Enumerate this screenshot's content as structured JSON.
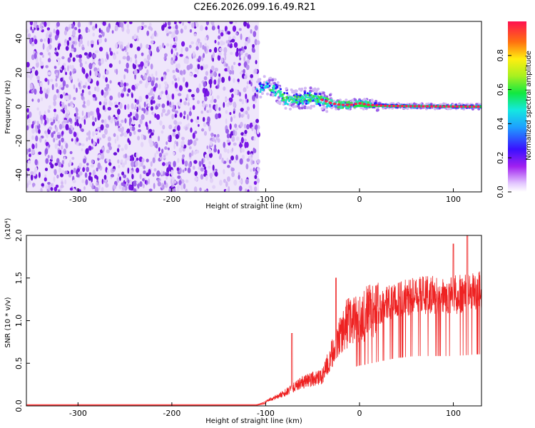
{
  "title": "C2E6.2026.099.16.49.R21",
  "colors": {
    "snr_line": "#ee2222",
    "baseline": "#ff4444",
    "noise_light": "#d9c7f3",
    "noise_dark": "#7a18e6"
  },
  "chart_data": [
    {
      "type": "heatmap",
      "name": "spectrogram",
      "xlabel": "Height of straight line (km)",
      "ylabel": "Frequency (Hz)",
      "xlim": [
        -355,
        130
      ],
      "ylim": [
        -50,
        50
      ],
      "x_ticks": [
        -300,
        -200,
        -100,
        0,
        100
      ],
      "y_ticks": [
        -40,
        -20,
        0,
        20,
        40
      ],
      "noise_region_x": [
        -355,
        -107
      ],
      "signal_start_x": -110,
      "signal_track": [
        [
          -110,
          10
        ],
        [
          -100,
          12
        ],
        [
          -90,
          10
        ],
        [
          -80,
          5
        ],
        [
          -70,
          4
        ],
        [
          -60,
          5
        ],
        [
          -50,
          5
        ],
        [
          -40,
          4
        ],
        [
          -30,
          2
        ],
        [
          -20,
          1
        ],
        [
          -10,
          1
        ],
        [
          0,
          2
        ],
        [
          10,
          1
        ],
        [
          30,
          0.5
        ],
        [
          60,
          0.2
        ],
        [
          90,
          0.1
        ],
        [
          130,
          0
        ]
      ]
    },
    {
      "type": "colorbar",
      "name": "amplitude-colorbar",
      "label": "Normalized spectral amplitude",
      "range": [
        0,
        1
      ],
      "ticks": [
        "0.0",
        "0.2",
        "0.4",
        "0.6",
        "0.8"
      ]
    },
    {
      "type": "line",
      "name": "snr",
      "xlabel": "Height of straight line (km)",
      "ylabel": "SNR (10 * v/v)",
      "y_scale_label": "(x10⁴)",
      "xlim": [
        -355,
        130
      ],
      "ylim": [
        0,
        2.0
      ],
      "x_ticks": [
        -300,
        -200,
        -100,
        0,
        100
      ],
      "y_ticks": [
        "0.0",
        "0.5",
        "1.0",
        "1.5",
        "2.0"
      ],
      "envelope": [
        [
          -355,
          0.01
        ],
        [
          -110,
          0.01
        ],
        [
          -100,
          0.05
        ],
        [
          -80,
          0.15
        ],
        [
          -60,
          0.28
        ],
        [
          -40,
          0.35
        ],
        [
          -25,
          0.7
        ],
        [
          -15,
          0.95
        ],
        [
          0,
          1.05
        ],
        [
          20,
          1.15
        ],
        [
          40,
          1.25
        ],
        [
          60,
          1.3
        ],
        [
          80,
          1.3
        ],
        [
          100,
          1.3
        ],
        [
          130,
          1.35
        ]
      ],
      "peaks": [
        {
          "x": -72,
          "y": 0.85
        },
        {
          "x": -25,
          "y": 1.5
        },
        {
          "x": 100,
          "y": 1.9
        },
        {
          "x": 115,
          "y": 2.0
        }
      ]
    }
  ]
}
